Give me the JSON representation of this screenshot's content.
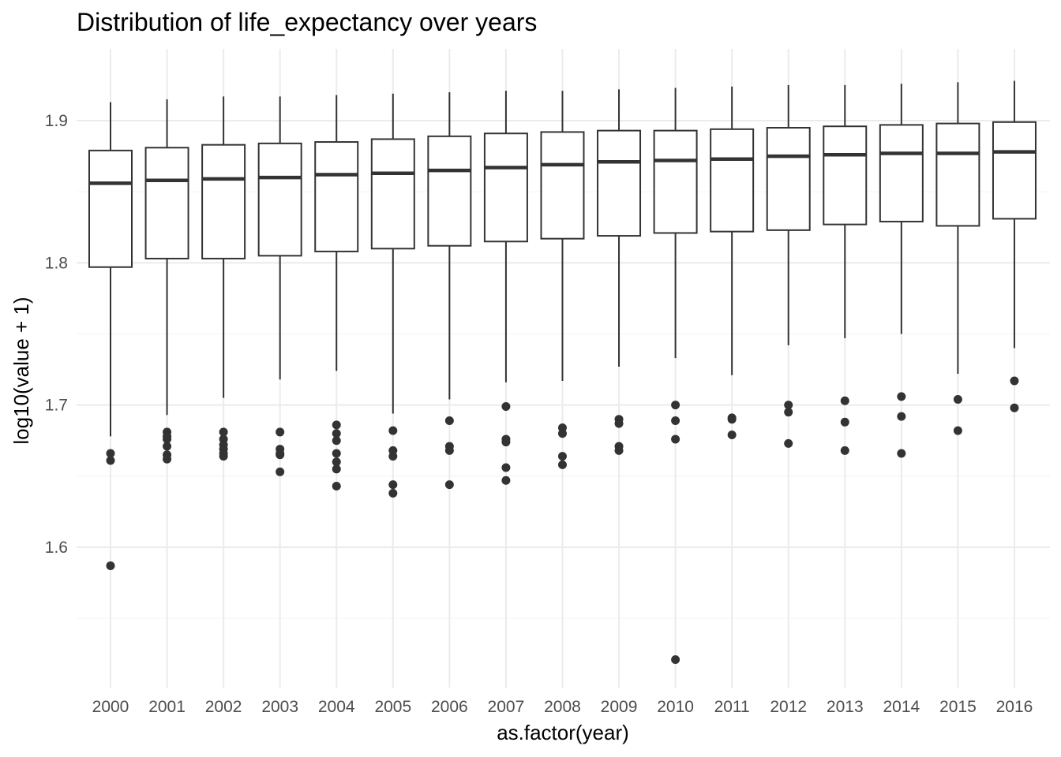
{
  "chart_data": {
    "type": "boxplot",
    "title": "Distribution of life_expectancy over years",
    "xlabel": "as.factor(year)",
    "ylabel": "log10(value + 1)",
    "ylim": [
      1.5,
      1.95
    ],
    "y_ticks": [
      1.6,
      1.7,
      1.8,
      1.9
    ],
    "y_tick_labels": [
      "1.6",
      "1.7",
      "1.8",
      "1.9"
    ],
    "y_minor_ticks": [
      1.55,
      1.65,
      1.75,
      1.85
    ],
    "grid": true,
    "colors": {
      "box_stroke": "#333333",
      "box_fill": "#ffffff",
      "outlier": "#333333",
      "grid_major": "#ebebeb",
      "grid_minor": "#f5f5f5"
    },
    "categories": [
      "2000",
      "2001",
      "2002",
      "2003",
      "2004",
      "2005",
      "2006",
      "2007",
      "2008",
      "2009",
      "2010",
      "2011",
      "2012",
      "2013",
      "2014",
      "2015",
      "2016"
    ],
    "boxes": [
      {
        "min": 1.678,
        "q1": 1.797,
        "median": 1.856,
        "q3": 1.879,
        "max": 1.913,
        "outliers": [
          1.666,
          1.661,
          1.587
        ]
      },
      {
        "min": 1.693,
        "q1": 1.803,
        "median": 1.858,
        "q3": 1.881,
        "max": 1.915,
        "outliers": [
          1.681,
          1.678,
          1.676,
          1.671,
          1.665,
          1.662
        ]
      },
      {
        "min": 1.705,
        "q1": 1.803,
        "median": 1.859,
        "q3": 1.883,
        "max": 1.917,
        "outliers": [
          1.681,
          1.676,
          1.672,
          1.669,
          1.666,
          1.664
        ]
      },
      {
        "min": 1.718,
        "q1": 1.805,
        "median": 1.86,
        "q3": 1.884,
        "max": 1.917,
        "outliers": [
          1.681,
          1.669,
          1.666,
          1.665,
          1.653
        ]
      },
      {
        "min": 1.724,
        "q1": 1.808,
        "median": 1.862,
        "q3": 1.885,
        "max": 1.918,
        "outliers": [
          1.686,
          1.68,
          1.675,
          1.666,
          1.66,
          1.655,
          1.643
        ]
      },
      {
        "min": 1.694,
        "q1": 1.81,
        "median": 1.863,
        "q3": 1.887,
        "max": 1.919,
        "outliers": [
          1.682,
          1.668,
          1.664,
          1.644,
          1.638
        ]
      },
      {
        "min": 1.704,
        "q1": 1.812,
        "median": 1.865,
        "q3": 1.889,
        "max": 1.92,
        "outliers": [
          1.689,
          1.671,
          1.668,
          1.644
        ]
      },
      {
        "min": 1.716,
        "q1": 1.815,
        "median": 1.867,
        "q3": 1.891,
        "max": 1.921,
        "outliers": [
          1.699,
          1.676,
          1.674,
          1.656,
          1.647
        ]
      },
      {
        "min": 1.717,
        "q1": 1.817,
        "median": 1.869,
        "q3": 1.892,
        "max": 1.921,
        "outliers": [
          1.684,
          1.68,
          1.664,
          1.658
        ]
      },
      {
        "min": 1.727,
        "q1": 1.819,
        "median": 1.871,
        "q3": 1.893,
        "max": 1.922,
        "outliers": [
          1.69,
          1.687,
          1.671,
          1.668
        ]
      },
      {
        "min": 1.733,
        "q1": 1.821,
        "median": 1.872,
        "q3": 1.893,
        "max": 1.923,
        "outliers": [
          1.7,
          1.689,
          1.676,
          1.521
        ]
      },
      {
        "min": 1.721,
        "q1": 1.822,
        "median": 1.873,
        "q3": 1.894,
        "max": 1.924,
        "outliers": [
          1.691,
          1.69,
          1.679
        ]
      },
      {
        "min": 1.742,
        "q1": 1.823,
        "median": 1.875,
        "q3": 1.895,
        "max": 1.925,
        "outliers": [
          1.7,
          1.695,
          1.673
        ]
      },
      {
        "min": 1.747,
        "q1": 1.827,
        "median": 1.876,
        "q3": 1.896,
        "max": 1.925,
        "outliers": [
          1.703,
          1.688,
          1.668
        ]
      },
      {
        "min": 1.75,
        "q1": 1.829,
        "median": 1.877,
        "q3": 1.897,
        "max": 1.926,
        "outliers": [
          1.706,
          1.692,
          1.666
        ]
      },
      {
        "min": 1.722,
        "q1": 1.826,
        "median": 1.877,
        "q3": 1.898,
        "max": 1.927,
        "outliers": [
          1.704,
          1.682
        ]
      },
      {
        "min": 1.74,
        "q1": 1.831,
        "median": 1.878,
        "q3": 1.899,
        "max": 1.928,
        "outliers": [
          1.717,
          1.698
        ]
      }
    ]
  }
}
